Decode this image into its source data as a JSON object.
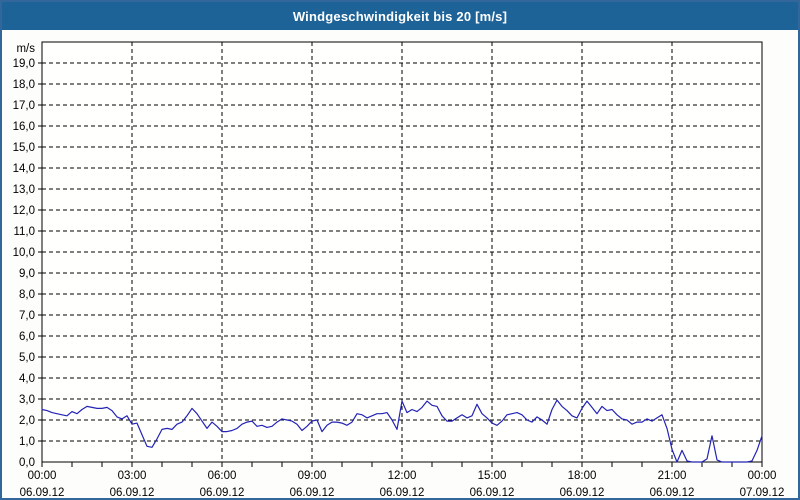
{
  "window": {
    "title": "Windgeschwindigkeit bis 20 [m/s]"
  },
  "colors": {
    "titlebar_bg": "#1e6398",
    "titlebar_text": "#ffffff",
    "window_border": "#33669a",
    "page_bg": "#fdfefb",
    "plot_bg": "#fffffe",
    "grid": "#000000",
    "axis": "#000000",
    "line": "#2323b4",
    "tick_text": "#000000"
  },
  "chart_data": {
    "type": "line",
    "title": "Windgeschwindigkeit bis 20 [m/s]",
    "ylabel": "m/s",
    "ylim": [
      0,
      20
    ],
    "ytick_step": 1,
    "ytick_labels": [
      "0,0",
      "1,0",
      "2,0",
      "3,0",
      "4,0",
      "5,0",
      "6,0",
      "7,0",
      "8,0",
      "9,0",
      "10,0",
      "11,0",
      "12,0",
      "13,0",
      "14,0",
      "15,0",
      "16,0",
      "17,0",
      "18,0",
      "19,0"
    ],
    "grid": "dashed",
    "legend": "none",
    "x_axis": {
      "hours_total": 24,
      "minor_tick_every_hours": 1,
      "gridline_every_hours": 3,
      "labels": [
        {
          "time": "00:00",
          "date": "06.09.12",
          "hour": 0
        },
        {
          "time": "03:00",
          "date": "06.09.12",
          "hour": 3
        },
        {
          "time": "06:00",
          "date": "06.09.12",
          "hour": 6
        },
        {
          "time": "09:00",
          "date": "06.09.12",
          "hour": 9
        },
        {
          "time": "12:00",
          "date": "06.09.12",
          "hour": 12
        },
        {
          "time": "15:00",
          "date": "06.09.12",
          "hour": 15
        },
        {
          "time": "18:00",
          "date": "06.09.12",
          "hour": 18
        },
        {
          "time": "21:00",
          "date": "06.09.12",
          "hour": 21
        },
        {
          "time": "00:00",
          "date": "07.09.12",
          "hour": 24
        }
      ]
    },
    "series": [
      {
        "name": "Windgeschwindigkeit",
        "unit": "m/s",
        "color": "#2323b4",
        "interval_minutes": 10,
        "start_time": "00:00",
        "values": [
          2.5,
          2.45,
          2.35,
          2.3,
          2.25,
          2.2,
          2.4,
          2.3,
          2.5,
          2.65,
          2.6,
          2.55,
          2.55,
          2.6,
          2.45,
          2.15,
          2.05,
          2.2,
          1.8,
          1.85,
          1.3,
          0.75,
          0.7,
          1.1,
          1.55,
          1.6,
          1.55,
          1.8,
          1.9,
          2.2,
          2.55,
          2.3,
          1.95,
          1.6,
          1.9,
          1.7,
          1.45,
          1.45,
          1.5,
          1.6,
          1.8,
          1.9,
          1.95,
          1.7,
          1.75,
          1.65,
          1.7,
          1.9,
          2.05,
          2.0,
          1.95,
          1.8,
          1.5,
          1.7,
          1.95,
          2.0,
          1.45,
          1.75,
          1.9,
          1.9,
          1.85,
          1.75,
          1.9,
          2.3,
          2.25,
          2.1,
          2.2,
          2.3,
          2.3,
          2.35,
          2.0,
          1.55,
          2.9,
          2.35,
          2.5,
          2.4,
          2.6,
          2.9,
          2.7,
          2.65,
          2.2,
          1.95,
          1.95,
          2.1,
          2.25,
          2.1,
          2.2,
          2.75,
          2.3,
          2.1,
          1.85,
          1.75,
          1.95,
          2.25,
          2.3,
          2.35,
          2.25,
          2.0,
          1.9,
          2.15,
          2.0,
          1.8,
          2.5,
          2.95,
          2.65,
          2.45,
          2.2,
          2.1,
          2.55,
          2.9,
          2.6,
          2.3,
          2.65,
          2.45,
          2.5,
          2.25,
          2.05,
          2.0,
          1.8,
          1.9,
          1.9,
          2.05,
          1.95,
          2.1,
          2.25,
          1.6,
          0.6,
          0.0,
          0.55,
          0.05,
          0.0,
          0.0,
          0.0,
          0.15,
          1.25,
          0.1,
          0.0,
          0.0,
          0.0,
          0.0,
          0.0,
          0.0,
          0.05,
          0.55,
          1.25
        ]
      }
    ]
  }
}
